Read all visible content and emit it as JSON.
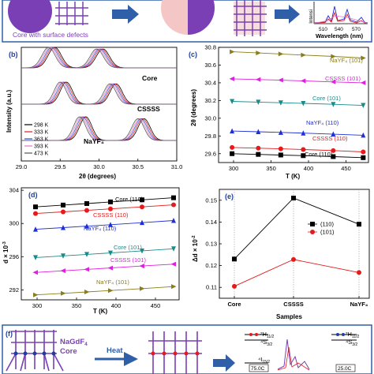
{
  "top_strip": {
    "core_caption": "Core with surface defects",
    "spectrum_ylabel": "Intensi",
    "spectrum_xlabel": "Wavelength (nm)",
    "spectrum_ticks": [
      "510",
      "540",
      "570"
    ]
  },
  "bottom_strip": {
    "panel_label": "(f)",
    "core_text_1": "NaGdF",
    "core_text_sub": "4",
    "core_text_2": "Core",
    "arrow_label": "Heat",
    "levels": [
      {
        "text": "²H",
        "sub": "11/2"
      },
      {
        "text": "⁴S",
        "sub": "3/2"
      },
      {
        "text": "⁴I",
        "sub": "15/2"
      },
      {
        "text": "²H",
        "sub": "11/2"
      },
      {
        "text": "⁴S",
        "sub": "3/2"
      }
    ],
    "boxes": [
      "75.0C",
      "25.0C"
    ]
  },
  "chart_data": [
    {
      "panel": "(b)",
      "type": "line",
      "xlabel": "2θ (degrees)",
      "ylabel": "Intensity (a.u.)",
      "xlim": [
        29.0,
        31.0
      ],
      "xticks": [
        "29.0",
        "29.5",
        "30.0",
        "30.5",
        "31.0"
      ],
      "group_labels": [
        "Core",
        "CSSSS",
        "NaYF₄"
      ],
      "legend": [
        "298 K",
        "333 K",
        "363 K",
        "393 K",
        "473 K"
      ],
      "colors": [
        "#000000",
        "#e41a1c",
        "#1f4fd6",
        "#e377c2",
        "#555555"
      ]
    },
    {
      "panel": "(c)",
      "type": "line",
      "xlabel": "T (K)",
      "ylabel": "2θ (degrees)",
      "xlim": [
        280,
        480
      ],
      "ylim": [
        29.5,
        30.8
      ],
      "xticks": [
        300,
        350,
        400,
        450
      ],
      "yticks": [
        "29.6",
        "29.8",
        "30.0",
        "30.2",
        "30.4",
        "30.6",
        "30.8"
      ],
      "x": [
        298,
        333,
        363,
        393,
        433,
        473
      ],
      "series": [
        {
          "name": "NaYF₄ (101)",
          "color": "#8b7d1a",
          "marker": "tri-right",
          "values": [
            30.75,
            30.737,
            30.725,
            30.713,
            30.698,
            30.68
          ]
        },
        {
          "name": "CSSSS (101)",
          "color": "#e020e0",
          "marker": "tri-left",
          "values": [
            30.445,
            30.437,
            30.43,
            30.422,
            30.41,
            30.4
          ]
        },
        {
          "name": "Core (101)",
          "color": "#1a8a8a",
          "marker": "tri-down",
          "values": [
            30.19,
            30.182,
            30.175,
            30.168,
            30.157,
            30.145
          ]
        },
        {
          "name": "NaYF₄ (110)",
          "color": "#1f2fd6",
          "marker": "tri-up",
          "values": [
            29.855,
            29.847,
            29.84,
            29.832,
            29.82,
            29.808
          ]
        },
        {
          "name": "CSSSS (110)",
          "color": "#e41a1c",
          "marker": "circle",
          "values": [
            29.67,
            29.662,
            29.655,
            29.647,
            29.635,
            29.62
          ]
        },
        {
          "name": "Core (110)",
          "color": "#000000",
          "marker": "square",
          "values": [
            29.6,
            29.592,
            29.585,
            29.578,
            29.567,
            29.555
          ]
        }
      ]
    },
    {
      "panel": "(d)",
      "type": "line",
      "xlabel": "T (K)",
      "ylabel_main": "d × 10",
      "ylabel_sup": "-3",
      "xlim": [
        280,
        480
      ],
      "ylim": [
        290.8,
        304.3
      ],
      "xticks": [
        300,
        350,
        400,
        450
      ],
      "yticks": [
        "292",
        "296",
        "300",
        "304"
      ],
      "x": [
        298,
        333,
        363,
        393,
        433,
        473
      ],
      "series": [
        {
          "name": "Core (110)",
          "color": "#000000",
          "marker": "square",
          "values": [
            302.0,
            302.22,
            302.4,
            302.6,
            302.85,
            303.1
          ]
        },
        {
          "name": "CSSSS (110)",
          "color": "#e41a1c",
          "marker": "circle",
          "values": [
            301.2,
            301.4,
            301.58,
            301.76,
            302.0,
            302.25
          ]
        },
        {
          "name": "NaYF₄ (110)",
          "color": "#1f2fd6",
          "marker": "tri-up",
          "values": [
            299.3,
            299.5,
            299.68,
            299.85,
            300.1,
            300.35
          ]
        },
        {
          "name": "Core (101)",
          "color": "#1a8a8a",
          "marker": "tri-down",
          "values": [
            295.9,
            296.1,
            296.28,
            296.45,
            296.7,
            296.95
          ]
        },
        {
          "name": "CSSSS (101)",
          "color": "#e020e0",
          "marker": "tri-left",
          "values": [
            294.1,
            294.3,
            294.47,
            294.64,
            294.88,
            295.1
          ]
        },
        {
          "name": "NaYF₄ (101)",
          "color": "#8b7d1a",
          "marker": "tri-right",
          "values": [
            291.4,
            291.58,
            291.75,
            291.92,
            292.15,
            292.4
          ]
        }
      ]
    },
    {
      "panel": "(e)",
      "type": "line",
      "xlabel": "Samples",
      "ylabel_main": "Δd × 10",
      "ylabel_sup": "-2",
      "ylim": [
        0.105,
        0.155
      ],
      "yticks": [
        "0.11",
        "0.12",
        "0.13",
        "0.14",
        "0.15"
      ],
      "categories": [
        "Core",
        "CSSSS",
        "NaYF₄"
      ],
      "series": [
        {
          "name": "(110)",
          "color": "#000000",
          "marker": "square",
          "values": [
            0.123,
            0.151,
            0.139
          ]
        },
        {
          "name": "(101)",
          "color": "#e41a1c",
          "marker": "circle",
          "values": [
            0.1105,
            0.1228,
            0.1168
          ]
        }
      ]
    }
  ]
}
